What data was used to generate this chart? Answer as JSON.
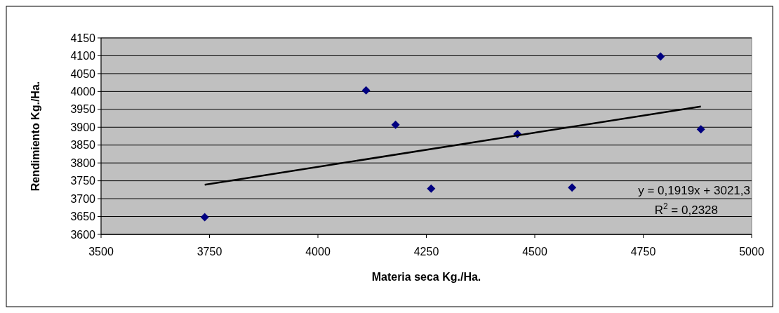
{
  "chart_data": {
    "type": "scatter",
    "xlabel": "Materia seca Kg./Ha.",
    "ylabel": "Rendimiento Kg./Ha.",
    "xlim": [
      3500,
      5000
    ],
    "xticks": [
      3500,
      3750,
      4000,
      4250,
      4500,
      4750,
      5000
    ],
    "ylim": [
      3600,
      4150
    ],
    "yticks": [
      3600,
      3650,
      3700,
      3750,
      3800,
      3850,
      3900,
      3950,
      4000,
      4050,
      4100,
      4150
    ],
    "grid": "y",
    "marker": "diamond",
    "series": [
      {
        "color": "#000080",
        "x": [
          3739,
          4111,
          4179,
          4261,
          4460,
          4586,
          4790,
          4883
        ],
        "values": [
          3648,
          4003,
          3907,
          3728,
          3881,
          3731,
          4098,
          3894
        ]
      },
      {
        "type": "line",
        "color": "#000000",
        "marker": "none",
        "line_style": "solid",
        "x": [
          3739,
          4883
        ],
        "values": [
          3739,
          3958
        ]
      }
    ],
    "annotations": [
      "y = 0,1919x + 3021,3",
      "R$^{2}$ = 0,2328"
    ]
  }
}
